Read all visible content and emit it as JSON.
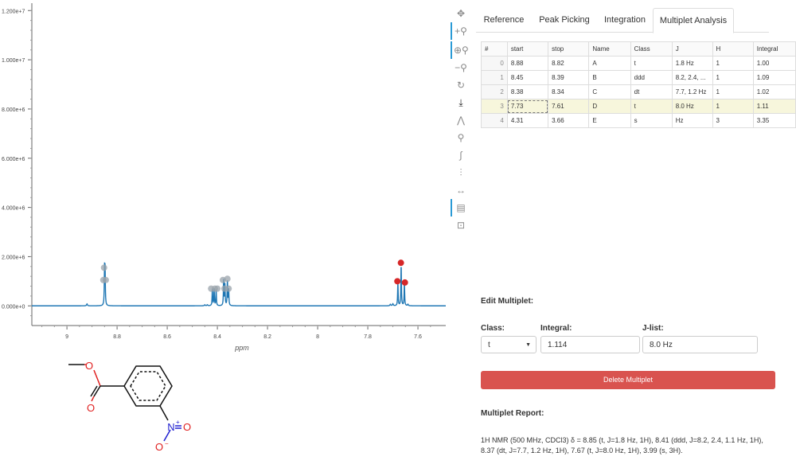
{
  "chart_data": {
    "type": "line",
    "xlabel": "ppm",
    "x_reversed": true,
    "xlim": [
      9.14,
      7.47
    ],
    "ylim": [
      -800000,
      12300000
    ],
    "x_ticks": [
      9,
      8.8,
      8.6,
      8.4,
      8.2,
      8,
      7.8,
      7.6
    ],
    "y_ticks": [
      0,
      2000000,
      4000000,
      6000000,
      8000000,
      10000000,
      12000000
    ],
    "y_tick_labels": [
      "0.000e+0",
      "2.000e+6",
      "4.000e+6",
      "6.000e+6",
      "8.000e+6",
      "1.000e+7",
      "1.200e+7"
    ],
    "line_color": "#1f77b4",
    "peaks": [
      {
        "ppm": 8.85,
        "height": 1400000,
        "width": 0.0012
      },
      {
        "ppm": 8.848,
        "height": 1400000,
        "width": 0.0012
      },
      {
        "ppm": 8.92,
        "height": 80000,
        "width": 0.002
      },
      {
        "ppm": 8.42,
        "height": 700000,
        "width": 0.0012
      },
      {
        "ppm": 8.413,
        "height": 700000,
        "width": 0.0012
      },
      {
        "ppm": 8.405,
        "height": 650000,
        "width": 0.0012
      },
      {
        "ppm": 8.375,
        "height": 1050000,
        "width": 0.0012
      },
      {
        "ppm": 8.37,
        "height": 900000,
        "width": 0.0012
      },
      {
        "ppm": 8.36,
        "height": 1050000,
        "width": 0.0012
      },
      {
        "ppm": 8.355,
        "height": 650000,
        "width": 0.0012
      },
      {
        "ppm": 8.45,
        "height": 40000,
        "width": 0.002
      },
      {
        "ppm": 8.44,
        "height": 40000,
        "width": 0.002
      },
      {
        "ppm": 7.68,
        "height": 950000,
        "width": 0.0012
      },
      {
        "ppm": 7.667,
        "height": 1700000,
        "width": 0.0012
      },
      {
        "ppm": 7.654,
        "height": 950000,
        "width": 0.0012
      },
      {
        "ppm": 7.71,
        "height": 60000,
        "width": 0.002
      },
      {
        "ppm": 7.7,
        "height": 80000,
        "width": 0.002
      },
      {
        "ppm": 7.64,
        "height": 60000,
        "width": 0.002
      }
    ],
    "markers_gray": [
      [
        8.852,
        1550000
      ],
      [
        8.855,
        1050000
      ],
      [
        8.845,
        1050000
      ],
      [
        8.425,
        700000
      ],
      [
        8.41,
        700000
      ],
      [
        8.4,
        700000
      ],
      [
        8.378,
        1050000
      ],
      [
        8.36,
        1100000
      ],
      [
        8.372,
        700000
      ],
      [
        8.355,
        700000
      ]
    ],
    "markers_red": [
      [
        7.682,
        1000000
      ],
      [
        7.668,
        1750000
      ],
      [
        7.652,
        950000
      ]
    ]
  },
  "toolbar": {
    "tools": [
      {
        "name": "pan-tool-icon",
        "glyph": "✥",
        "active": false
      },
      {
        "name": "box-zoom-icon",
        "glyph": "+⚲",
        "active": true
      },
      {
        "name": "wheel-zoom-icon",
        "glyph": "⊕⚲",
        "active": true
      },
      {
        "name": "zoom-out-icon",
        "glyph": "−⚲",
        "active": false
      },
      {
        "name": "reset-icon",
        "glyph": "↻",
        "active": false
      },
      {
        "name": "save-icon",
        "glyph": "⤓",
        "active": false
      },
      {
        "name": "peak-finder-icon",
        "glyph": "⋀",
        "active": false
      },
      {
        "name": "magnify-icon",
        "glyph": "⚲",
        "active": false
      },
      {
        "name": "integral-icon",
        "glyph": "∫",
        "active": false
      },
      {
        "name": "peak-pick-icon",
        "glyph": "⫶",
        "active": false
      },
      {
        "name": "range-select-icon",
        "glyph": "↔",
        "active": false
      },
      {
        "name": "hover-tool-icon",
        "glyph": "▤",
        "active": true
      },
      {
        "name": "crosshair-icon",
        "glyph": "⊡",
        "active": false
      }
    ]
  },
  "tabs": [
    "Reference",
    "Peak Picking",
    "Integration",
    "Multiplet Analysis"
  ],
  "active_tab": 3,
  "table": {
    "headers": [
      "#",
      "start",
      "stop",
      "Name",
      "Class",
      "J",
      "H",
      "Integral"
    ],
    "rows": [
      [
        "0",
        "8.88",
        "8.82",
        "A",
        "t",
        "1.8 Hz",
        "1",
        "1.00"
      ],
      [
        "1",
        "8.45",
        "8.39",
        "B",
        "ddd",
        "8.2, 2.4, ...",
        "1",
        "1.09"
      ],
      [
        "2",
        "8.38",
        "8.34",
        "C",
        "dt",
        "7.7, 1.2 Hz",
        "1",
        "1.02"
      ],
      [
        "3",
        "7.73",
        "7.61",
        "D",
        "t",
        "8.0 Hz",
        "1",
        "1.11"
      ],
      [
        "4",
        "4.31",
        "3.66",
        "E",
        "s",
        "Hz",
        "3",
        "3.35"
      ]
    ],
    "selected_row": 3
  },
  "edit": {
    "heading": "Edit Multiplet:",
    "class_label": "Class:",
    "integral_label": "Integral:",
    "jlist_label": "J-list:",
    "class_value": "t",
    "integral_value": "1.114",
    "jlist_value": "8.0 Hz",
    "delete_label": "Delete Multiplet"
  },
  "report": {
    "heading": "Multiplet Report:",
    "text": "1H NMR (500 MHz, CDCl3) δ = 8.85 (t, J=1.8 Hz, 1H), 8.41 (ddd, J=8.2, 2.4, 1.1 Hz, 1H), 8.37 (dt, J=7.7, 1.2 Hz, 1H), 7.67 (t, J=8.0 Hz, 1H), 3.99 (s, 3H)."
  },
  "molecule": {
    "atoms": {
      "o_ester": "O",
      "o_carbonyl": "O",
      "nitro_n": "N",
      "nitro_o_double": "O",
      "nitro_o_minus": "O"
    },
    "charges": {
      "n": "+",
      "o": "−"
    },
    "colors": {
      "oxygen": "#e02020",
      "nitrogen": "#2020d0",
      "bond": "#111111"
    }
  }
}
